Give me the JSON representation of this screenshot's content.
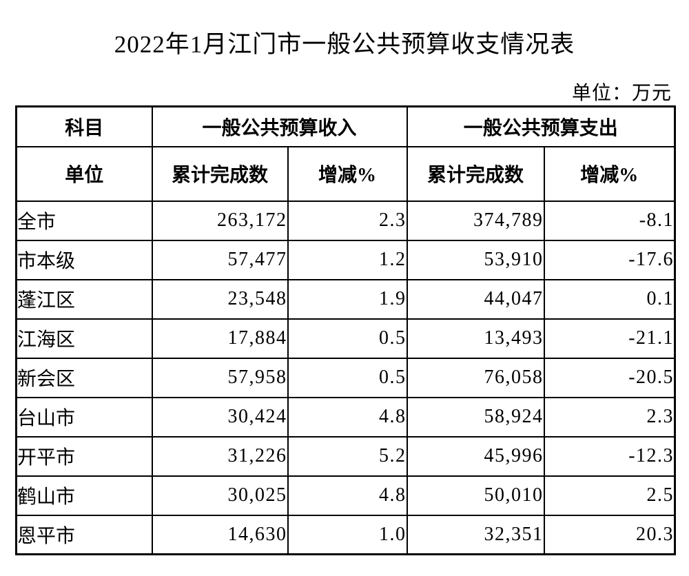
{
  "page": {
    "title": "2022年1月江门市一般公共预算收支情况表",
    "unit_note": "单位：万元"
  },
  "table": {
    "header": {
      "subject_label": "科目",
      "unit_label": "单位",
      "revenue_group": "一般公共预算收入",
      "expenditure_group": "一般公共预算支出",
      "cumulative_label": "累计完成数",
      "change_label": "增减%"
    },
    "rows": [
      {
        "region": "全市",
        "revenue_cumulative": "263,172",
        "revenue_change": "2.3",
        "expenditure_cumulative": "374,789",
        "expenditure_change": "-8.1"
      },
      {
        "region": "市本级",
        "revenue_cumulative": "57,477",
        "revenue_change": "1.2",
        "expenditure_cumulative": "53,910",
        "expenditure_change": "-17.6"
      },
      {
        "region": "蓬江区",
        "revenue_cumulative": "23,548",
        "revenue_change": "1.9",
        "expenditure_cumulative": "44,047",
        "expenditure_change": "0.1"
      },
      {
        "region": "江海区",
        "revenue_cumulative": "17,884",
        "revenue_change": "0.5",
        "expenditure_cumulative": "13,493",
        "expenditure_change": "-21.1"
      },
      {
        "region": "新会区",
        "revenue_cumulative": "57,958",
        "revenue_change": "0.5",
        "expenditure_cumulative": "76,058",
        "expenditure_change": "-20.5"
      },
      {
        "region": "台山市",
        "revenue_cumulative": "30,424",
        "revenue_change": "4.8",
        "expenditure_cumulative": "58,924",
        "expenditure_change": "2.3"
      },
      {
        "region": "开平市",
        "revenue_cumulative": "31,226",
        "revenue_change": "5.2",
        "expenditure_cumulative": "45,996",
        "expenditure_change": "-12.3"
      },
      {
        "region": "鹤山市",
        "revenue_cumulative": "30,025",
        "revenue_change": "4.8",
        "expenditure_cumulative": "50,010",
        "expenditure_change": "2.5"
      },
      {
        "region": "恩平市",
        "revenue_cumulative": "14,630",
        "revenue_change": "1.0",
        "expenditure_cumulative": "32,351",
        "expenditure_change": "20.3"
      }
    ]
  }
}
